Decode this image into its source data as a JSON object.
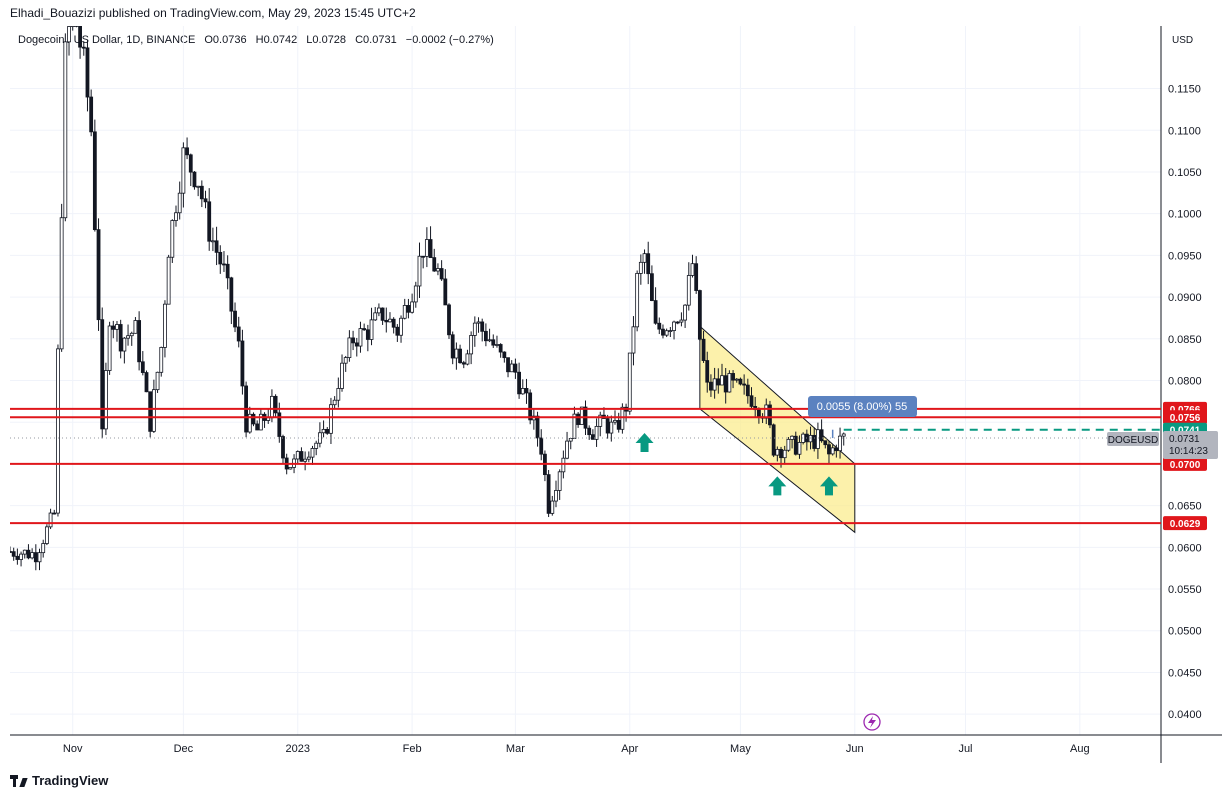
{
  "header": {
    "published": "Elhadi_Bouazizi published on TradingView.com, May 29, 2023 15:45 UTC+2"
  },
  "legend": {
    "symbol": "Dogecoin / US Dollar, 1D, BINANCE",
    "open": "O0.0736",
    "high": "H0.0742",
    "low": "L0.0728",
    "close": "C0.0731",
    "change": "−0.0002 (−0.27%)"
  },
  "footer": {
    "brand": "TradingView"
  },
  "colors": {
    "up": "#089981",
    "down": "#131722",
    "level": "#e0161b",
    "channel": "#fbec8f",
    "measure": "#5b82c0",
    "target": "#089981"
  },
  "chart_data": {
    "type": "candlestick",
    "currency": "USD",
    "y_ticks": [
      "0.0400",
      "0.0450",
      "0.0500",
      "0.0550",
      "0.0600",
      "0.0650",
      "0.0700",
      "0.0750",
      "0.0800",
      "0.0850",
      "0.0900",
      "0.0950",
      "0.1000",
      "0.1050",
      "0.1100",
      "0.1150"
    ],
    "y_range": [
      0.0375,
      0.1225
    ],
    "x_labels": [
      "Nov",
      "Dec",
      "2023",
      "Feb",
      "Mar",
      "Apr",
      "May",
      "Jun",
      "Jul",
      "Aug"
    ],
    "x_label_dates": [
      "2022-11-01",
      "2022-12-01",
      "2023-01-01",
      "2023-02-01",
      "2023-03-01",
      "2023-04-01",
      "2023-05-01",
      "2023-06-01",
      "2023-07-01",
      "2023-08-01"
    ],
    "x_range": [
      "2022-10-15",
      "2023-08-23"
    ],
    "price_path": [
      [
        "2022-10-15",
        0.0595
      ],
      [
        "2022-10-22",
        0.0592
      ],
      [
        "2022-10-27",
        0.064
      ],
      [
        "2022-10-28",
        0.083
      ],
      [
        "2022-10-30",
        0.119
      ],
      [
        "2022-11-01",
        0.125
      ],
      [
        "2022-11-04",
        0.118
      ],
      [
        "2022-11-06",
        0.11
      ],
      [
        "2022-11-08",
        0.088
      ],
      [
        "2022-11-09",
        0.073
      ],
      [
        "2022-11-11",
        0.088
      ],
      [
        "2022-11-14",
        0.085
      ],
      [
        "2022-11-18",
        0.086
      ],
      [
        "2022-11-22",
        0.075
      ],
      [
        "2022-11-25",
        0.084
      ],
      [
        "2022-11-27",
        0.096
      ],
      [
        "2022-12-01",
        0.107
      ],
      [
        "2022-12-05",
        0.104
      ],
      [
        "2022-12-08",
        0.098
      ],
      [
        "2022-12-12",
        0.093
      ],
      [
        "2022-12-16",
        0.084
      ],
      [
        "2022-12-18",
        0.075
      ],
      [
        "2022-12-21",
        0.074
      ],
      [
        "2022-12-25",
        0.077
      ],
      [
        "2022-12-29",
        0.07
      ],
      [
        "2022-12-31",
        0.07
      ],
      [
        "2023-01-04",
        0.072
      ],
      [
        "2023-01-08",
        0.073
      ],
      [
        "2023-01-12",
        0.08
      ],
      [
        "2023-01-16",
        0.085
      ],
      [
        "2023-01-20",
        0.086
      ],
      [
        "2023-01-24",
        0.088
      ],
      [
        "2023-01-28",
        0.086
      ],
      [
        "2023-02-01",
        0.091
      ],
      [
        "2023-02-04",
        0.096
      ],
      [
        "2023-02-08",
        0.093
      ],
      [
        "2023-02-12",
        0.084
      ],
      [
        "2023-02-15",
        0.083
      ],
      [
        "2023-02-18",
        0.087
      ],
      [
        "2023-02-22",
        0.085
      ],
      [
        "2023-02-26",
        0.082
      ],
      [
        "2023-03-01",
        0.081
      ],
      [
        "2023-03-05",
        0.076
      ],
      [
        "2023-03-08",
        0.072
      ],
      [
        "2023-03-10",
        0.065
      ],
      [
        "2023-03-12",
        0.068
      ],
      [
        "2023-03-15",
        0.073
      ],
      [
        "2023-03-18",
        0.076
      ],
      [
        "2023-03-22",
        0.074
      ],
      [
        "2023-03-25",
        0.075
      ],
      [
        "2023-03-28",
        0.074
      ],
      [
        "2023-03-31",
        0.077
      ],
      [
        "2023-04-03",
        0.092
      ],
      [
        "2023-04-05",
        0.095
      ],
      [
        "2023-04-08",
        0.086
      ],
      [
        "2023-04-12",
        0.087
      ],
      [
        "2023-04-16",
        0.089
      ],
      [
        "2023-04-18",
        0.094
      ],
      [
        "2023-04-20",
        0.085
      ],
      [
        "2023-04-22",
        0.079
      ],
      [
        "2023-04-26",
        0.08
      ],
      [
        "2023-04-30",
        0.079
      ],
      [
        "2023-05-04",
        0.078
      ],
      [
        "2023-05-08",
        0.076
      ],
      [
        "2023-05-10",
        0.072
      ],
      [
        "2023-05-14",
        0.072
      ],
      [
        "2023-05-18",
        0.0725
      ],
      [
        "2023-05-22",
        0.073
      ],
      [
        "2023-05-25",
        0.071
      ],
      [
        "2023-05-27",
        0.0725
      ],
      [
        "2023-05-29",
        0.0731
      ]
    ],
    "last_close": 0.0731,
    "horizontal_levels": [
      {
        "label": "0.0766",
        "value": 0.0766
      },
      {
        "label": "0.0756",
        "value": 0.0756
      },
      {
        "label": "0.0700",
        "value": 0.07
      },
      {
        "label": "0.0629",
        "value": 0.0629
      }
    ],
    "target_line": {
      "label": "0.0741",
      "value": 0.0741,
      "from": "2023-05-29",
      "style": "dashed"
    },
    "channel": {
      "upper_start": [
        "2023-04-20",
        0.0865
      ],
      "upper_end": [
        "2023-06-01",
        0.07
      ],
      "lower_start": [
        "2023-04-20",
        0.0766
      ],
      "lower_end": [
        "2023-06-01",
        0.0618
      ]
    },
    "measure_label": "0.0055 (8.00%) 55",
    "up_arrows": [
      {
        "date": "2023-04-05",
        "value": 0.0725
      },
      {
        "date": "2023-05-11",
        "value": 0.0673
      },
      {
        "date": "2023-05-25",
        "value": 0.0673
      }
    ],
    "price_tag": {
      "symbol": "DOGEUSD",
      "price": "0.0731",
      "countdown": "10:14:23"
    }
  }
}
